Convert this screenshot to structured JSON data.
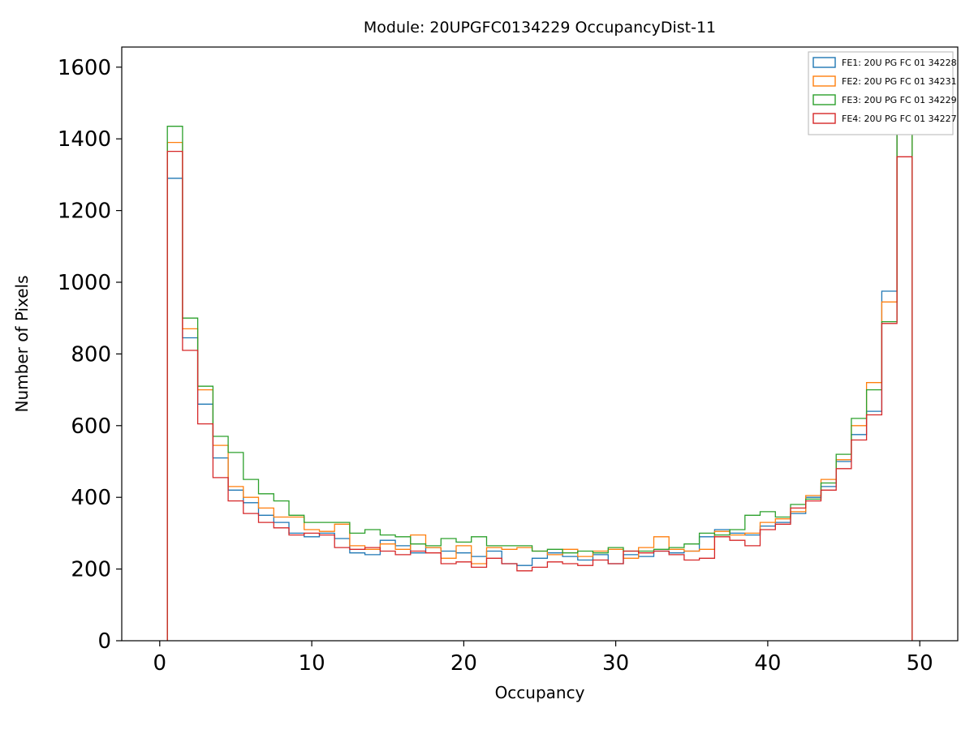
{
  "chart_data": {
    "type": "bar",
    "subtype": "step-histogram",
    "title": "Module: 20UPGFC0134229 OccupancyDist-11",
    "xlabel": "Occupancy",
    "ylabel": "Number of Pixels",
    "xlim": [
      -2.5,
      52.5
    ],
    "ylim": [
      0,
      1656
    ],
    "xticks": [
      0,
      10,
      20,
      30,
      40,
      50
    ],
    "yticks": [
      0,
      200,
      400,
      600,
      800,
      1000,
      1200,
      1400,
      1600
    ],
    "grid": false,
    "legend_position": "upper right",
    "bin_start": 0.5,
    "bin_width": 1,
    "series": [
      {
        "name": "FE1: 20U PG FC 01 34228",
        "color": "#1f77b4",
        "values": [
          1290,
          845,
          660,
          510,
          420,
          385,
          350,
          330,
          300,
          290,
          300,
          285,
          245,
          240,
          280,
          265,
          245,
          260,
          250,
          245,
          235,
          250,
          215,
          210,
          230,
          245,
          235,
          225,
          240,
          215,
          240,
          235,
          250,
          245,
          250,
          290,
          310,
          300,
          295,
          320,
          330,
          355,
          400,
          430,
          500,
          575,
          640,
          975,
          1490
        ]
      },
      {
        "name": "FE2: 20U PG FC 01 34231",
        "color": "#ff7f0e",
        "values": [
          1390,
          870,
          700,
          545,
          430,
          400,
          370,
          345,
          345,
          310,
          305,
          325,
          265,
          255,
          270,
          255,
          295,
          260,
          230,
          265,
          215,
          260,
          255,
          260,
          250,
          240,
          255,
          235,
          250,
          255,
          230,
          260,
          290,
          255,
          250,
          255,
          305,
          295,
          300,
          330,
          340,
          360,
          405,
          450,
          505,
          600,
          720,
          945,
          1510
        ]
      },
      {
        "name": "FE3: 20U PG FC 01 34229",
        "color": "#2ca02c",
        "values": [
          1435,
          900,
          710,
          570,
          525,
          450,
          410,
          390,
          350,
          330,
          330,
          330,
          300,
          310,
          295,
          290,
          270,
          265,
          285,
          275,
          290,
          265,
          265,
          265,
          250,
          255,
          245,
          250,
          245,
          260,
          250,
          250,
          255,
          260,
          270,
          300,
          295,
          310,
          350,
          360,
          345,
          380,
          395,
          440,
          520,
          620,
          700,
          890,
          1530
        ]
      },
      {
        "name": "FE4: 20U PG FC 01 34227",
        "color": "#d62728",
        "values": [
          1365,
          810,
          605,
          455,
          390,
          355,
          330,
          315,
          295,
          300,
          295,
          260,
          255,
          260,
          250,
          240,
          250,
          245,
          215,
          220,
          205,
          230,
          215,
          195,
          205,
          220,
          215,
          210,
          225,
          215,
          250,
          245,
          250,
          240,
          225,
          230,
          290,
          280,
          265,
          310,
          325,
          370,
          390,
          420,
          480,
          560,
          630,
          885,
          1350
        ]
      }
    ]
  }
}
